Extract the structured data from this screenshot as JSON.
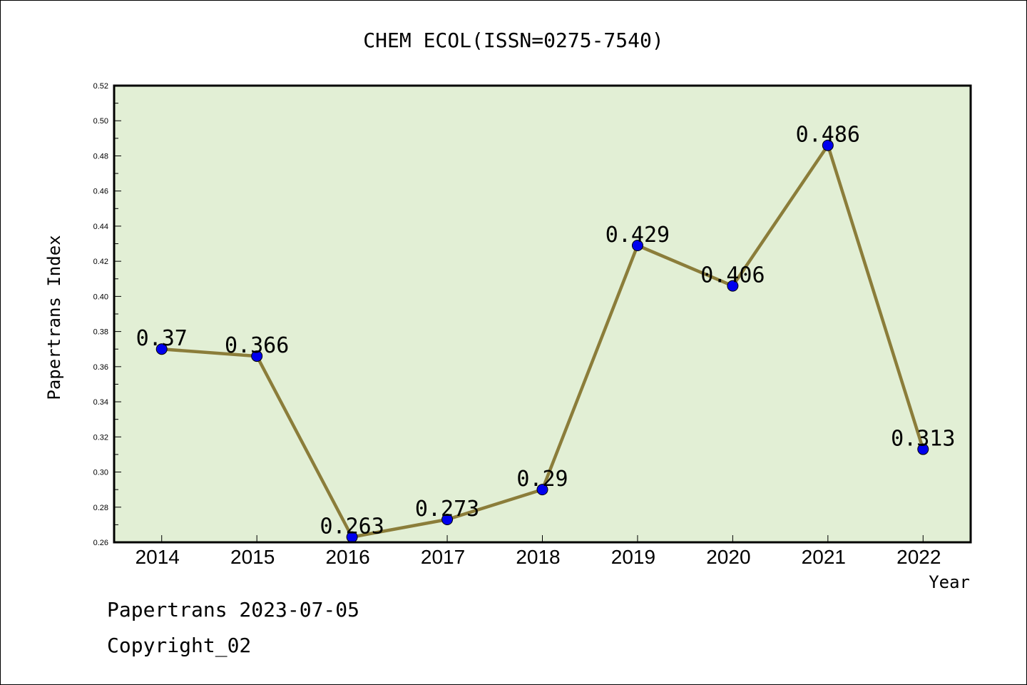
{
  "chart_data": {
    "type": "line",
    "title": "CHEM ECOL(ISSN=0275-7540)",
    "xlabel": "Year",
    "ylabel": "Papertrans Index",
    "categories": [
      "2014",
      "2015",
      "2016",
      "2017",
      "2018",
      "2019",
      "2020",
      "2021",
      "2022"
    ],
    "values": [
      0.37,
      0.366,
      0.263,
      0.273,
      0.29,
      0.429,
      0.406,
      0.486,
      0.313
    ],
    "data_labels": [
      "0.37",
      "0.366",
      "0.263",
      "0.273",
      "0.29",
      "0.429",
      "0.406",
      "0.486",
      "0.313"
    ],
    "ylim": [
      0.26,
      0.52
    ],
    "y_ticks": [
      "0.26",
      "0.28",
      "0.30",
      "0.32",
      "0.34",
      "0.36",
      "0.38",
      "0.40",
      "0.42",
      "0.44",
      "0.46",
      "0.48",
      "0.50",
      "0.52"
    ],
    "grid": false,
    "colors": {
      "plot_background": "#e2efd5",
      "line": "#8b7d3a",
      "marker": "#0000ee"
    }
  },
  "footer": {
    "line1": "Papertrans 2023-07-05",
    "line2": "Copyright_02"
  }
}
